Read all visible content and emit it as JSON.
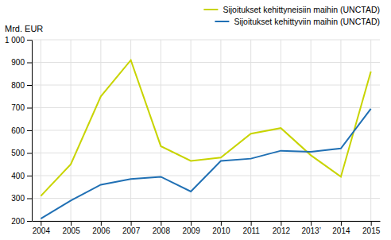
{
  "chart_data": {
    "type": "line",
    "y_label": "Mrd. EUR",
    "categories": [
      "2004",
      "2005",
      "2006",
      "2007",
      "2008",
      "2009",
      "2010",
      "2011",
      "2012",
      "2013’",
      "2014",
      "2015"
    ],
    "series": [
      {
        "name": "Sijoitukset kehittyneisiin maihin (UNCTAD)",
        "color": "#c8d400",
        "values": [
          310,
          450,
          750,
          910,
          530,
          465,
          480,
          585,
          610,
          490,
          395,
          860
        ]
      },
      {
        "name": "Sijoitukset kehittyviin maihin (UNCTAD)",
        "color": "#2070b4",
        "values": [
          210,
          290,
          360,
          385,
          395,
          330,
          465,
          475,
          510,
          505,
          520,
          695
        ]
      }
    ],
    "ylim": [
      200,
      1000
    ],
    "yticks": [
      200,
      300,
      400,
      500,
      600,
      700,
      800,
      900,
      {
        "value": 1000,
        "label": "1 000"
      }
    ],
    "grid": true,
    "legend": "upper right"
  }
}
